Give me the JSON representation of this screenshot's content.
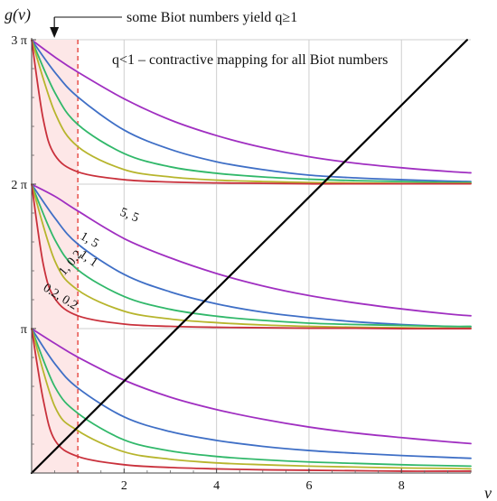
{
  "chart_data": {
    "type": "line",
    "xlabel": "ν",
    "ylabel": "g(ν)",
    "xlim": [
      0,
      9.5
    ],
    "ylim": [
      0,
      9.42477796076938
    ],
    "grid": true,
    "x_ticks": [
      {
        "value": 2,
        "label": "2"
      },
      {
        "value": 4,
        "label": "4"
      },
      {
        "value": 6,
        "label": "6"
      },
      {
        "value": 8,
        "label": "8"
      }
    ],
    "y_ticks": [
      {
        "value": 3.14159265358979,
        "label": "π"
      },
      {
        "value": 6.28318530717959,
        "label": "2 π"
      },
      {
        "value": 9.42477796076938,
        "label": "3 π"
      }
    ],
    "shaded_region": {
      "x": [
        0,
        1
      ],
      "color": "#fde7e7",
      "boundary_color": "#e8504a"
    },
    "annotations": [
      {
        "text": "some Biot numbers yield q≥1",
        "arrow_to_x": 1.0
      },
      {
        "text": "q<1 – contractive mapping for all Biot numbers"
      }
    ],
    "curve_labels": [
      "5, 5",
      "1, 5",
      "1, 1",
      "1, 0.2",
      "0.2, 0.2"
    ],
    "colors": {
      "purple": "#a02fc1",
      "blue": "#3f6fc6",
      "green": "#31b86a",
      "olive": "#b7b52d",
      "red": "#c9313c",
      "line": "#000000",
      "grid": "#cfcfcf"
    },
    "series": [
      {
        "branch": 3,
        "color": "purple",
        "x": [
          0,
          0.5,
          1,
          2,
          3,
          4,
          5,
          6,
          7,
          8,
          9,
          9.5
        ],
        "y": [
          9.42,
          9.05,
          8.72,
          8.14,
          7.68,
          7.34,
          7.08,
          6.88,
          6.74,
          6.64,
          6.56,
          6.53
        ]
      },
      {
        "branch": 3,
        "color": "blue",
        "x": [
          0,
          0.5,
          1,
          2,
          3,
          4,
          5,
          6,
          7,
          8,
          9,
          9.5
        ],
        "y": [
          9.42,
          8.72,
          8.18,
          7.46,
          7.04,
          6.77,
          6.6,
          6.48,
          6.42,
          6.38,
          6.35,
          6.34
        ]
      },
      {
        "branch": 3,
        "color": "green",
        "x": [
          0,
          0.5,
          1,
          2,
          3,
          4,
          5,
          6,
          7,
          8,
          9,
          9.5
        ],
        "y": [
          9.42,
          8.28,
          7.58,
          6.95,
          6.66,
          6.52,
          6.44,
          6.39,
          6.36,
          6.34,
          6.32,
          6.32
        ]
      },
      {
        "branch": 3,
        "color": "olive",
        "x": [
          0,
          0.5,
          1,
          2,
          3,
          4,
          5,
          6,
          7,
          8,
          9,
          9.5
        ],
        "y": [
          9.42,
          7.85,
          7.1,
          6.6,
          6.44,
          6.37,
          6.34,
          6.32,
          6.31,
          6.3,
          6.3,
          6.3
        ]
      },
      {
        "branch": 3,
        "color": "red",
        "x": [
          0,
          0.25,
          0.5,
          1,
          2,
          3,
          4,
          5,
          6,
          7,
          8,
          9,
          9.5
        ],
        "y": [
          9.42,
          7.7,
          6.92,
          6.55,
          6.38,
          6.33,
          6.31,
          6.3,
          6.29,
          6.29,
          6.29,
          6.29,
          6.29
        ]
      },
      {
        "branch": 2,
        "color": "purple",
        "x": [
          0,
          0.5,
          1,
          2,
          3,
          4,
          5,
          6,
          7,
          8,
          9,
          9.5
        ],
        "y": [
          6.28,
          6.02,
          5.7,
          5.1,
          4.68,
          4.34,
          4.07,
          3.86,
          3.7,
          3.57,
          3.46,
          3.42
        ]
      },
      {
        "branch": 2,
        "color": "blue",
        "x": [
          0,
          0.5,
          1,
          2,
          3,
          4,
          5,
          6,
          7,
          8,
          9,
          9.5
        ],
        "y": [
          6.28,
          5.55,
          4.98,
          4.32,
          3.94,
          3.68,
          3.5,
          3.38,
          3.29,
          3.23,
          3.19,
          3.18
        ]
      },
      {
        "branch": 2,
        "color": "green",
        "x": [
          0,
          0.5,
          1,
          2,
          3,
          4,
          5,
          6,
          7,
          8,
          9,
          9.5
        ],
        "y": [
          6.28,
          5.08,
          4.42,
          3.84,
          3.56,
          3.41,
          3.32,
          3.26,
          3.23,
          3.21,
          3.19,
          3.19
        ]
      },
      {
        "branch": 2,
        "color": "olive",
        "x": [
          0,
          0.5,
          1,
          2,
          3,
          4,
          5,
          6,
          7,
          8,
          9,
          9.5
        ],
        "y": [
          6.28,
          4.62,
          3.98,
          3.52,
          3.35,
          3.27,
          3.22,
          3.19,
          3.17,
          3.16,
          3.15,
          3.15
        ]
      },
      {
        "branch": 2,
        "color": "red",
        "x": [
          0,
          0.25,
          0.5,
          1,
          2,
          3,
          4,
          5,
          6,
          7,
          8,
          9,
          9.5
        ],
        "y": [
          6.28,
          4.55,
          3.8,
          3.42,
          3.24,
          3.19,
          3.17,
          3.16,
          3.15,
          3.15,
          3.14,
          3.14,
          3.14
        ]
      },
      {
        "branch": 1,
        "color": "purple",
        "x": [
          0,
          0.5,
          1,
          2,
          3,
          4,
          5,
          6,
          7,
          8,
          9,
          9.5
        ],
        "y": [
          3.14,
          2.82,
          2.52,
          2.02,
          1.65,
          1.38,
          1.17,
          1.0,
          0.87,
          0.77,
          0.68,
          0.64
        ]
      },
      {
        "branch": 1,
        "color": "blue",
        "x": [
          0,
          0.5,
          1,
          2,
          3,
          4,
          5,
          6,
          7,
          8,
          9,
          9.5
        ],
        "y": [
          3.14,
          2.38,
          1.85,
          1.22,
          0.9,
          0.71,
          0.58,
          0.49,
          0.43,
          0.38,
          0.34,
          0.32
        ]
      },
      {
        "branch": 1,
        "color": "green",
        "x": [
          0,
          0.5,
          1,
          2,
          3,
          4,
          5,
          6,
          7,
          8,
          9,
          9.5
        ],
        "y": [
          3.14,
          1.88,
          1.3,
          0.72,
          0.48,
          0.36,
          0.29,
          0.24,
          0.21,
          0.18,
          0.16,
          0.15
        ]
      },
      {
        "branch": 1,
        "color": "olive",
        "x": [
          0,
          0.5,
          1,
          2,
          3,
          4,
          5,
          6,
          7,
          8,
          9,
          9.5
        ],
        "y": [
          3.14,
          1.45,
          0.92,
          0.46,
          0.3,
          0.22,
          0.18,
          0.15,
          0.13,
          0.11,
          0.1,
          0.09
        ]
      },
      {
        "branch": 1,
        "color": "red",
        "x": [
          0,
          0.25,
          0.5,
          1,
          2,
          3,
          4,
          5,
          6,
          7,
          8,
          9,
          9.5
        ],
        "y": [
          3.14,
          1.6,
          0.72,
          0.36,
          0.18,
          0.12,
          0.09,
          0.07,
          0.06,
          0.05,
          0.04,
          0.04,
          0.04
        ]
      },
      {
        "branch": "line",
        "color": "line",
        "x": [
          0,
          9.42
        ],
        "y": [
          0,
          9.42
        ]
      }
    ]
  }
}
